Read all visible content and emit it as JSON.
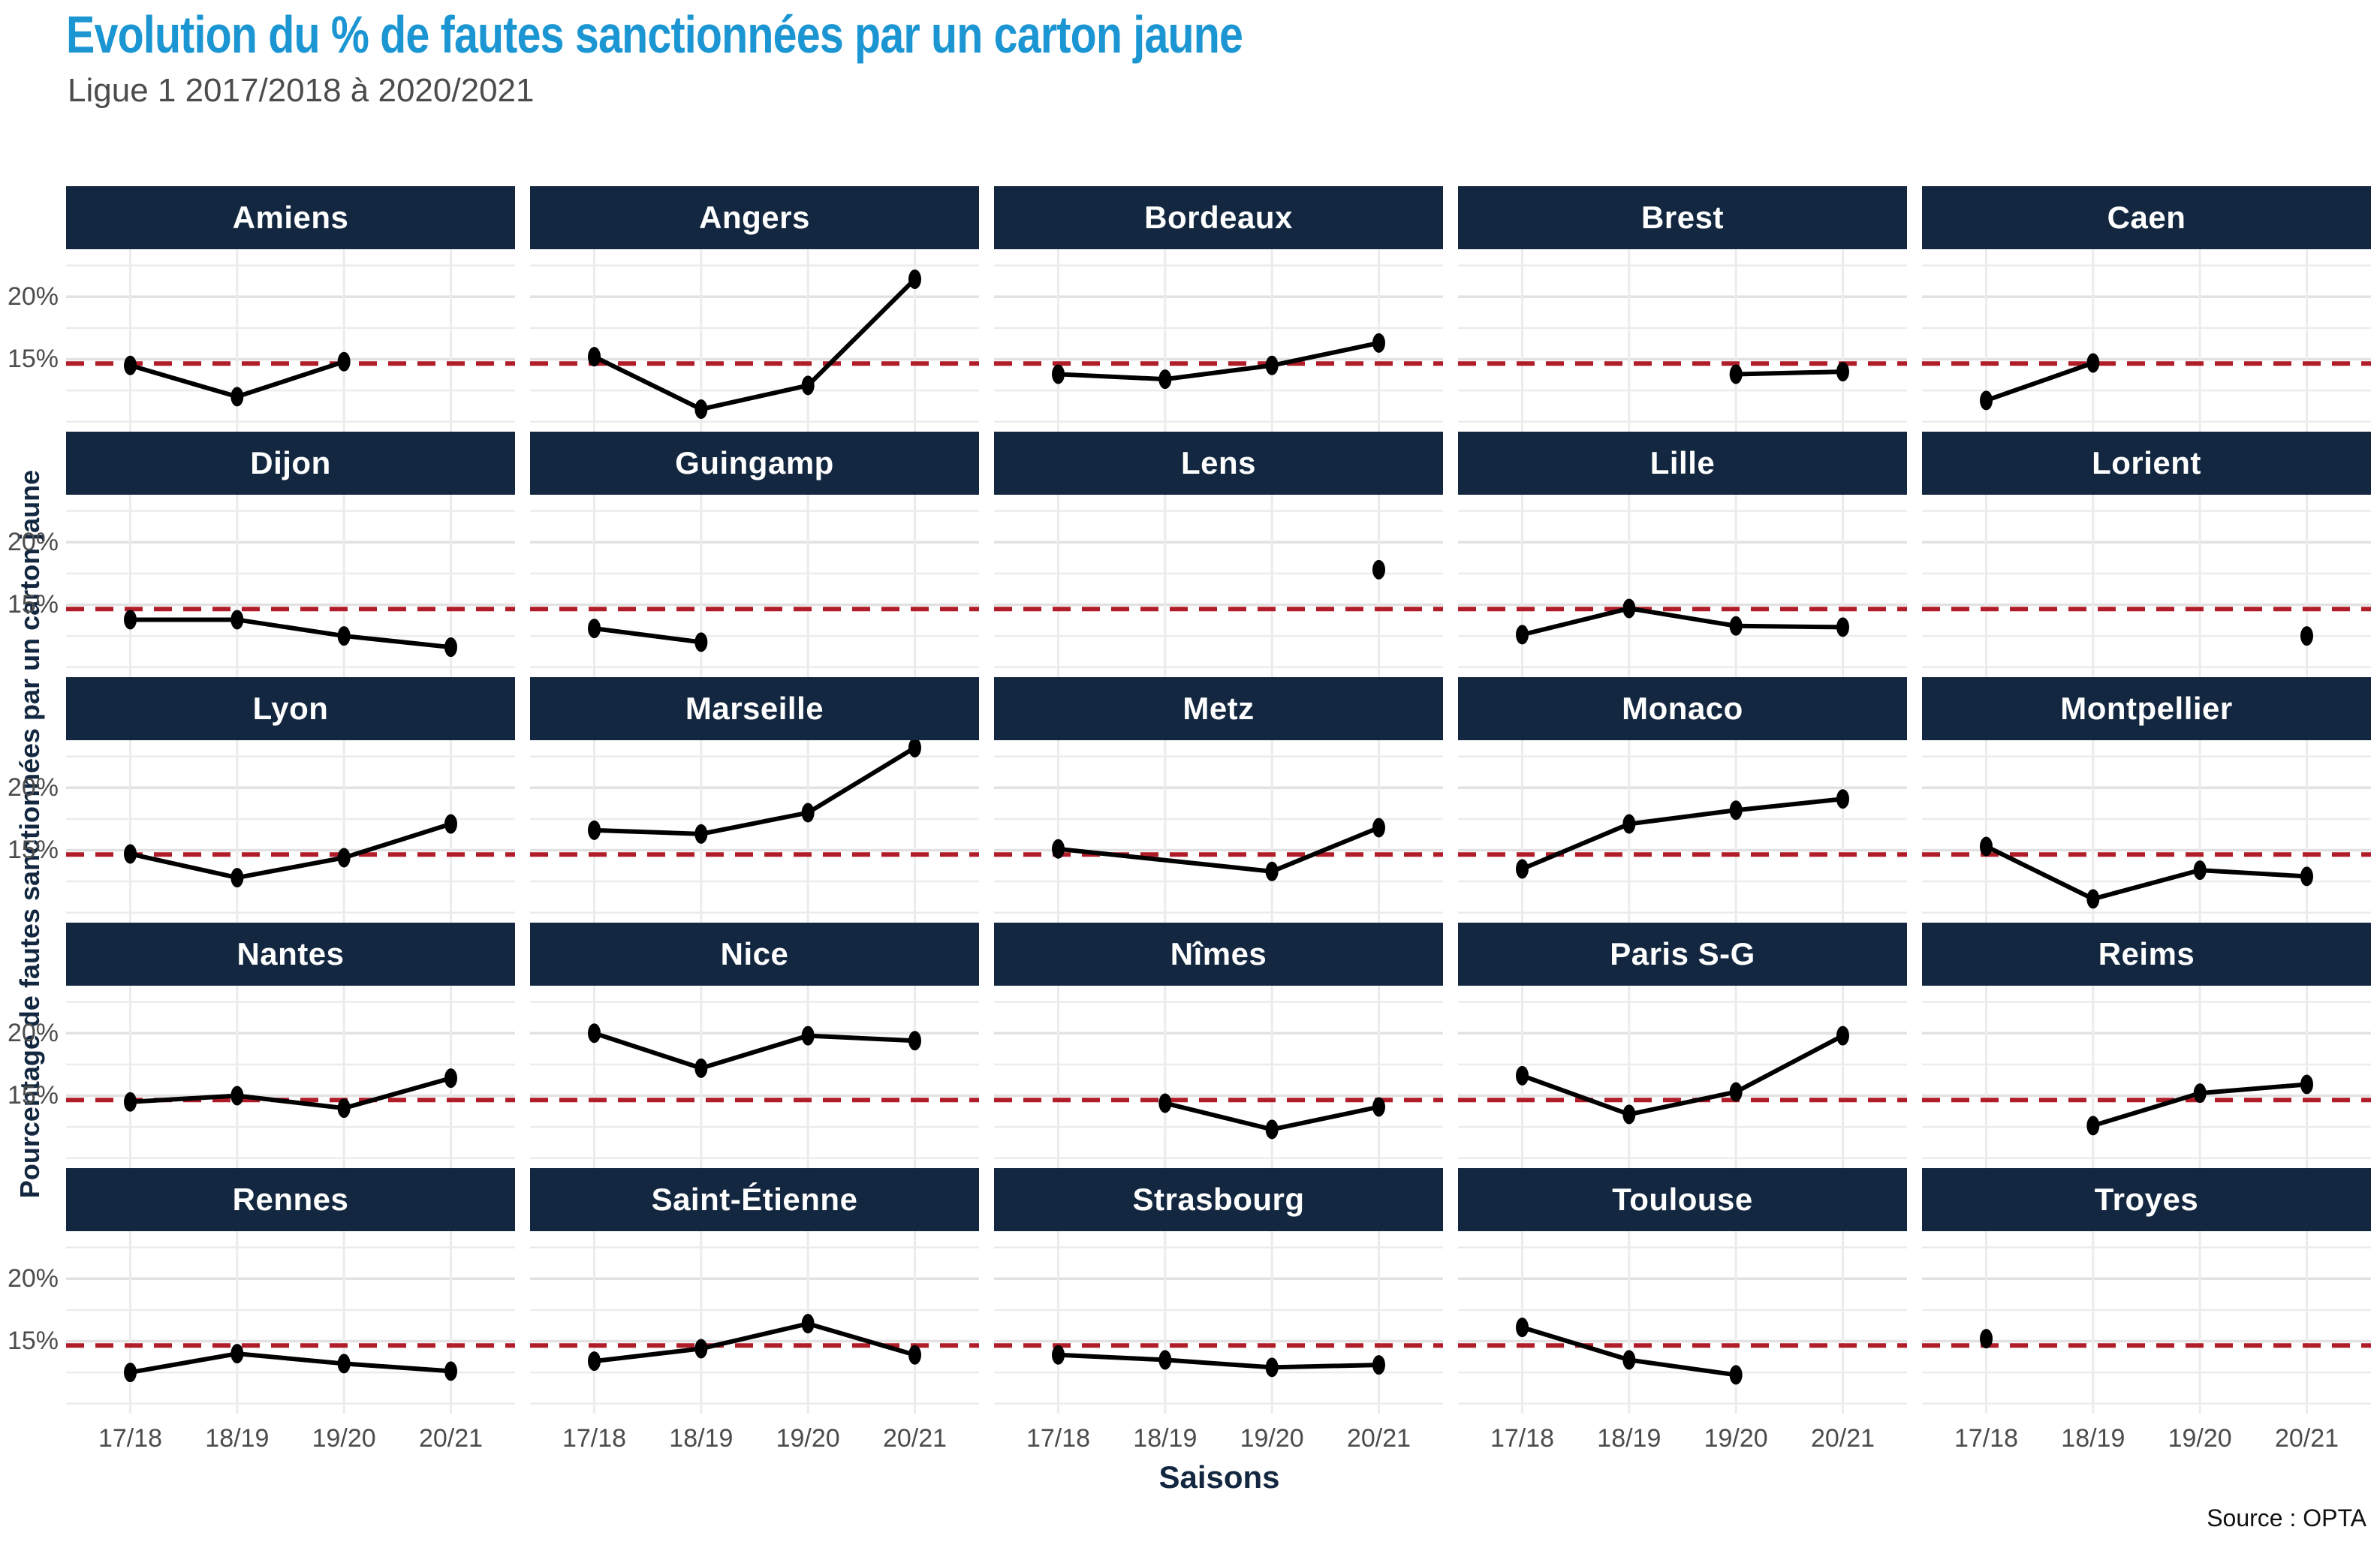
{
  "title": "Evolution du % de fautes sanctionnées par un carton jaune",
  "subtitle": "Ligue 1 2017/2018 à 2020/2021",
  "axes": {
    "x_label": "Saisons",
    "y_label": "Pourcentage de fautes sanctionnées par un carton jaune",
    "y_ticks": [
      "20%",
      "15%"
    ],
    "x_ticks": [
      "17/18",
      "18/19",
      "19/20",
      "20/21"
    ],
    "source": "Source : OPTA"
  },
  "colors": {
    "title_blue": "#1b96d3",
    "header_navy": "#132840",
    "red_line": "#b01c28",
    "grid_major": "#e2e2e2",
    "grid_minor": "#ececec",
    "text_gray": "#4c4c4c",
    "line_black": "#000000"
  },
  "chart_data": {
    "type": "line",
    "categories": [
      "17/18",
      "18/19",
      "19/20",
      "20/21"
    ],
    "ylim": [
      9.2,
      23.8
    ],
    "y_tick_values_pct": [
      20,
      15
    ],
    "y_gridlines_major_pct": [
      20,
      15
    ],
    "y_gridlines_minor_pct": [
      22.5,
      17.5,
      12.5,
      10
    ],
    "ref_line_pct": 14.65,
    "grid": true,
    "facets": [
      {
        "name": "Amiens",
        "values": [
          14.5,
          12.0,
          14.8,
          null
        ]
      },
      {
        "name": "Angers",
        "values": [
          15.2,
          11.0,
          12.9,
          21.4
        ]
      },
      {
        "name": "Bordeaux",
        "values": [
          13.8,
          13.4,
          14.5,
          16.3
        ]
      },
      {
        "name": "Brest",
        "values": [
          null,
          null,
          13.8,
          14.0
        ]
      },
      {
        "name": "Caen",
        "values": [
          11.7,
          14.7,
          null,
          null
        ]
      },
      {
        "name": "Dijon",
        "values": [
          13.8,
          13.8,
          12.5,
          11.6
        ]
      },
      {
        "name": "Guingamp",
        "values": [
          13.1,
          12.0,
          null,
          null
        ]
      },
      {
        "name": "Lens",
        "values": [
          null,
          null,
          null,
          17.8
        ]
      },
      {
        "name": "Lille",
        "values": [
          12.6,
          14.7,
          13.3,
          13.2
        ]
      },
      {
        "name": "Lorient",
        "values": [
          null,
          null,
          null,
          12.5
        ]
      },
      {
        "name": "Lyon",
        "values": [
          14.7,
          12.8,
          14.4,
          17.1
        ]
      },
      {
        "name": "Marseille",
        "values": [
          16.6,
          16.3,
          18.0,
          23.2
        ]
      },
      {
        "name": "Metz",
        "values": [
          15.1,
          null,
          13.3,
          16.8
        ]
      },
      {
        "name": "Monaco",
        "values": [
          13.5,
          17.1,
          18.2,
          19.1
        ]
      },
      {
        "name": "Montpellier",
        "values": [
          15.3,
          11.1,
          13.4,
          12.9
        ]
      },
      {
        "name": "Nantes",
        "values": [
          14.5,
          15.0,
          14.0,
          16.4
        ]
      },
      {
        "name": "Nice",
        "values": [
          20.0,
          17.2,
          19.8,
          19.4
        ]
      },
      {
        "name": "Nîmes",
        "values": [
          null,
          14.4,
          12.3,
          14.1
        ]
      },
      {
        "name": "Paris S-G",
        "values": [
          16.6,
          13.5,
          15.3,
          19.8
        ]
      },
      {
        "name": "Reims",
        "values": [
          null,
          12.6,
          15.2,
          15.9
        ]
      },
      {
        "name": "Rennes",
        "values": [
          12.5,
          14.0,
          13.2,
          12.6
        ]
      },
      {
        "name": "Saint-Étienne",
        "values": [
          13.4,
          14.4,
          16.4,
          13.9
        ]
      },
      {
        "name": "Strasbourg",
        "values": [
          13.9,
          13.5,
          12.9,
          13.1
        ]
      },
      {
        "name": "Toulouse",
        "values": [
          16.1,
          13.5,
          12.3,
          null
        ]
      },
      {
        "name": "Troyes",
        "values": [
          15.2,
          null,
          null,
          null
        ]
      }
    ]
  }
}
